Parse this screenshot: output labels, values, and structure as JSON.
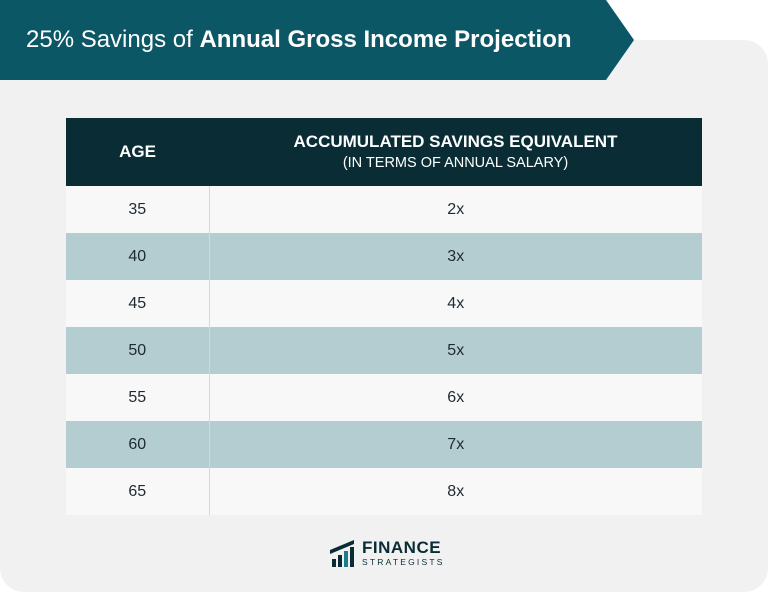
{
  "title": {
    "prefix": "25% Savings of",
    "bold": "Annual Gross Income Projection"
  },
  "table": {
    "headers": {
      "age": "AGE",
      "savings": "ACCUMULATED SAVINGS EQUIVALENT",
      "savings_sub": "(IN TERMS OF ANNUAL SALARY)"
    },
    "rows": [
      {
        "age": "35",
        "savings": "2x"
      },
      {
        "age": "40",
        "savings": "3x"
      },
      {
        "age": "45",
        "savings": "4x"
      },
      {
        "age": "50",
        "savings": "5x"
      },
      {
        "age": "55",
        "savings": "6x"
      },
      {
        "age": "60",
        "savings": "7x"
      },
      {
        "age": "65",
        "savings": "8x"
      }
    ]
  },
  "logo": {
    "name": "FINANCE",
    "sub": "STRATEGISTS",
    "icon": "finance-strategists-logo-icon"
  },
  "colors": {
    "banner": "#0c5766",
    "header": "#0a2d35",
    "row_alt": "#b3cdd1",
    "row_light": "#f8f8f9",
    "background": "#f1f1f1"
  }
}
